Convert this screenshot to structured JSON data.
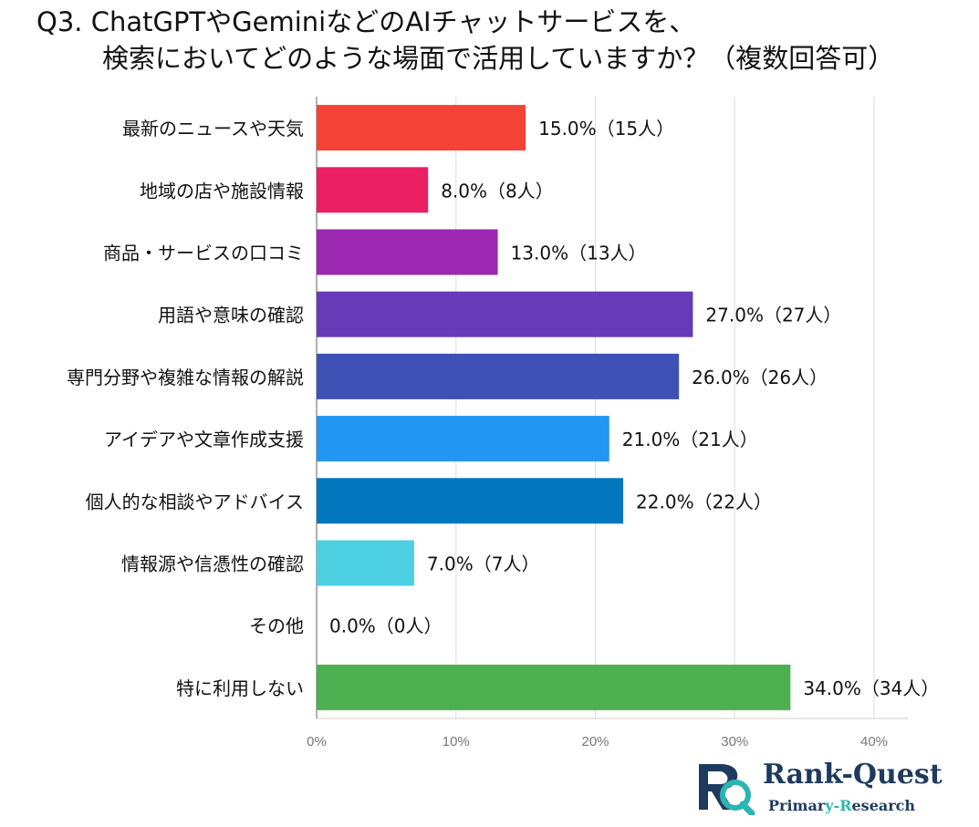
{
  "title": {
    "line1": "Q3. ChatGPTやGeminiなどのAIチャットサービスを、",
    "line2": "検索においてどのような場面で活用していますか？（複数回答可）"
  },
  "chart_data": {
    "type": "bar",
    "orientation": "horizontal",
    "categories": [
      "最新のニュースや天気",
      "地域の店や施設情報",
      "商品・サービスの口コミ",
      "用語や意味の確認",
      "専門分野や複雑な情報の解説",
      "アイデアや文章作成支援",
      "個人的な相談やアドバイス",
      "情報源や信憑性の確認",
      "その他",
      "特に利用しない"
    ],
    "values": [
      15,
      8,
      13,
      27,
      26,
      21,
      22,
      7,
      0,
      34
    ],
    "data_labels": [
      "15.0%（15人）",
      "8.0%（8人）",
      "13.0%（13人）",
      "27.0%（27人）",
      "26.0%（26人）",
      "21.0%（21人）",
      "22.0%（22人）",
      "7.0%（7人）",
      "0.0%（0人）",
      "34.0%（34人）"
    ],
    "colors": [
      "#f44336",
      "#e91e63",
      "#9c27b0",
      "#673ab7",
      "#3f51b5",
      "#2196f3",
      "#0277bd",
      "#4dd0e1",
      "#9e9e9e",
      "#4caf50"
    ],
    "xlim": [
      0,
      42
    ],
    "xticks": [
      0,
      10,
      20,
      30,
      40
    ],
    "xtick_labels": [
      "0%",
      "10%",
      "20%",
      "30%",
      "40%"
    ],
    "grid": true
  },
  "logo": {
    "name_part1": "Rank-Quest",
    "sub_part1": "Primar",
    "sub_part2": "y-R",
    "sub_part3": "esearch"
  }
}
